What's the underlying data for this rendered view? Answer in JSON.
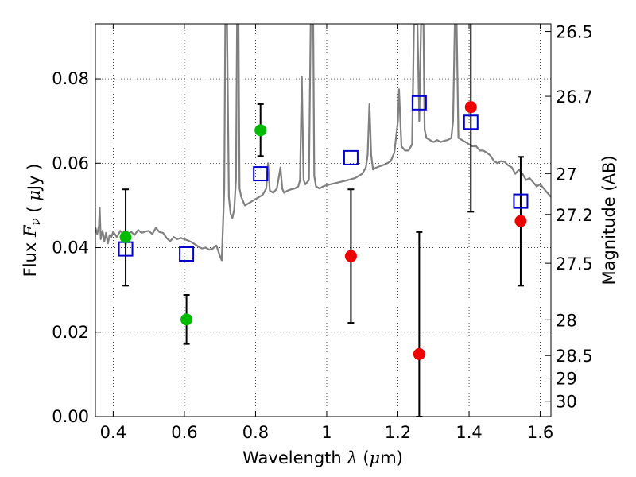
{
  "chart_data": {
    "type": "scatter",
    "title": "",
    "xlabel": "Wavelength  λ (μm)",
    "ylabel_left": "Flux  F_ν  ( μJy )",
    "ylabel_right": "Magnitude (AB)",
    "xlim": [
      0.35,
      1.63
    ],
    "ylim": [
      0.0,
      0.093
    ],
    "grid": true,
    "x_ticks": [
      0.4,
      0.6,
      0.8,
      1.0,
      1.2,
      1.4,
      1.6
    ],
    "x_tick_labels": [
      "0.4",
      "0.6",
      "0.8",
      "1",
      "1.2",
      "1.4",
      "1.6"
    ],
    "y_ticks": [
      0.0,
      0.02,
      0.04,
      0.06,
      0.08
    ],
    "y_tick_labels": [
      "0.00",
      "0.02",
      "0.04",
      "0.06",
      "0.08"
    ],
    "right_ticks": [
      {
        "mag": 26.5,
        "label": "26.5"
      },
      {
        "mag": 26.7,
        "label": "26.7"
      },
      {
        "mag": 27.0,
        "label": "27"
      },
      {
        "mag": 27.2,
        "label": "27.2"
      },
      {
        "mag": 27.5,
        "label": "27.5"
      },
      {
        "mag": 28.0,
        "label": "28"
      },
      {
        "mag": 28.5,
        "label": "28.5"
      },
      {
        "mag": 29.0,
        "label": "29"
      },
      {
        "mag": 30.0,
        "label": "30"
      }
    ],
    "series": [
      {
        "marker": "square",
        "color": "#0000cc",
        "points": [
          {
            "x": 0.435,
            "y": 0.0397
          },
          {
            "x": 0.606,
            "y": 0.0385
          },
          {
            "x": 0.814,
            "y": 0.0575
          },
          {
            "x": 1.068,
            "y": 0.0613
          },
          {
            "x": 1.26,
            "y": 0.0743
          },
          {
            "x": 1.405,
            "y": 0.0697
          },
          {
            "x": 1.545,
            "y": 0.051
          }
        ]
      },
      {
        "marker": "circle",
        "color": "#00bb00",
        "points": [
          {
            "x": 0.435,
            "y": 0.0425,
            "yerr_low": 0.031,
            "yerr_high": 0.0538
          },
          {
            "x": 0.606,
            "y": 0.023,
            "yerr_low": 0.0172,
            "yerr_high": 0.0288
          },
          {
            "x": 0.814,
            "y": 0.0678,
            "yerr_low": 0.0617,
            "yerr_high": 0.074
          }
        ]
      },
      {
        "marker": "circle",
        "color": "#ee0000",
        "points": [
          {
            "x": 1.068,
            "y": 0.038,
            "yerr_low": 0.0222,
            "yerr_high": 0.0538
          },
          {
            "x": 1.26,
            "y": 0.0148,
            "yerr_low": 0.0,
            "yerr_high": 0.0437
          },
          {
            "x": 1.405,
            "y": 0.0733,
            "yerr_low": 0.0485,
            "yerr_high": 0.093
          },
          {
            "x": 1.545,
            "y": 0.0463,
            "yerr_low": 0.031,
            "yerr_high": 0.0615
          }
        ]
      }
    ],
    "spectrum": {
      "color": "#808080",
      "points": [
        [
          0.35,
          0.0448
        ],
        [
          0.355,
          0.0432
        ],
        [
          0.36,
          0.0452
        ],
        [
          0.362,
          0.0495
        ],
        [
          0.365,
          0.042
        ],
        [
          0.37,
          0.044
        ],
        [
          0.375,
          0.0415
        ],
        [
          0.38,
          0.0435
        ],
        [
          0.385,
          0.041
        ],
        [
          0.39,
          0.043
        ],
        [
          0.395,
          0.0425
        ],
        [
          0.4,
          0.0438
        ],
        [
          0.41,
          0.0425
        ],
        [
          0.42,
          0.044
        ],
        [
          0.43,
          0.0432
        ],
        [
          0.435,
          0.0405
        ],
        [
          0.44,
          0.0428
        ],
        [
          0.45,
          0.0438
        ],
        [
          0.46,
          0.043
        ],
        [
          0.47,
          0.0442
        ],
        [
          0.48,
          0.0435
        ],
        [
          0.49,
          0.0438
        ],
        [
          0.5,
          0.044
        ],
        [
          0.51,
          0.0432
        ],
        [
          0.52,
          0.0447
        ],
        [
          0.53,
          0.0437
        ],
        [
          0.54,
          0.0435
        ],
        [
          0.55,
          0.0423
        ],
        [
          0.56,
          0.0415
        ],
        [
          0.57,
          0.0425
        ],
        [
          0.58,
          0.042
        ],
        [
          0.59,
          0.0423
        ],
        [
          0.6,
          0.042
        ],
        [
          0.61,
          0.0417
        ],
        [
          0.62,
          0.0413
        ],
        [
          0.63,
          0.0408
        ],
        [
          0.64,
          0.0402
        ],
        [
          0.65,
          0.0398
        ],
        [
          0.66,
          0.04
        ],
        [
          0.67,
          0.0395
        ],
        [
          0.68,
          0.0398
        ],
        [
          0.69,
          0.0405
        ],
        [
          0.7,
          0.038
        ],
        [
          0.705,
          0.037
        ],
        [
          0.71,
          0.049
        ],
        [
          0.712,
          0.054
        ],
        [
          0.715,
          0.093
        ],
        [
          0.72,
          0.093
        ],
        [
          0.725,
          0.052
        ],
        [
          0.73,
          0.048
        ],
        [
          0.735,
          0.047
        ],
        [
          0.74,
          0.049
        ],
        [
          0.745,
          0.056
        ],
        [
          0.748,
          0.093
        ],
        [
          0.752,
          0.093
        ],
        [
          0.755,
          0.054
        ],
        [
          0.76,
          0.052
        ],
        [
          0.77,
          0.05
        ],
        [
          0.78,
          0.0505
        ],
        [
          0.79,
          0.051
        ],
        [
          0.8,
          0.0515
        ],
        [
          0.81,
          0.052
        ],
        [
          0.82,
          0.0525
        ],
        [
          0.83,
          0.054
        ],
        [
          0.835,
          0.06
        ],
        [
          0.84,
          0.0535
        ],
        [
          0.85,
          0.053
        ],
        [
          0.86,
          0.054
        ],
        [
          0.87,
          0.059
        ],
        [
          0.875,
          0.054
        ],
        [
          0.88,
          0.053
        ],
        [
          0.89,
          0.0535
        ],
        [
          0.9,
          0.0538
        ],
        [
          0.91,
          0.054
        ],
        [
          0.92,
          0.0545
        ],
        [
          0.925,
          0.056
        ],
        [
          0.93,
          0.0805
        ],
        [
          0.935,
          0.056
        ],
        [
          0.94,
          0.055
        ],
        [
          0.945,
          0.0555
        ],
        [
          0.95,
          0.056
        ],
        [
          0.955,
          0.093
        ],
        [
          0.962,
          0.093
        ],
        [
          0.965,
          0.057
        ],
        [
          0.97,
          0.0545
        ],
        [
          0.98,
          0.054
        ],
        [
          0.99,
          0.0545
        ],
        [
          1.0,
          0.0548
        ],
        [
          1.02,
          0.0552
        ],
        [
          1.04,
          0.0556
        ],
        [
          1.06,
          0.056
        ],
        [
          1.08,
          0.0565
        ],
        [
          1.09,
          0.057
        ],
        [
          1.1,
          0.0575
        ],
        [
          1.11,
          0.059
        ],
        [
          1.115,
          0.062
        ],
        [
          1.12,
          0.074
        ],
        [
          1.125,
          0.062
        ],
        [
          1.13,
          0.0585
        ],
        [
          1.14,
          0.059
        ],
        [
          1.15,
          0.0593
        ],
        [
          1.16,
          0.0596
        ],
        [
          1.17,
          0.06
        ],
        [
          1.18,
          0.0605
        ],
        [
          1.19,
          0.0625
        ],
        [
          1.2,
          0.07
        ],
        [
          1.203,
          0.0775
        ],
        [
          1.207,
          0.07
        ],
        [
          1.21,
          0.064
        ],
        [
          1.22,
          0.063
        ],
        [
          1.23,
          0.063
        ],
        [
          1.24,
          0.0645
        ],
        [
          1.245,
          0.093
        ],
        [
          1.255,
          0.093
        ],
        [
          1.26,
          0.07
        ],
        [
          1.265,
          0.093
        ],
        [
          1.272,
          0.093
        ],
        [
          1.275,
          0.068
        ],
        [
          1.28,
          0.066
        ],
        [
          1.29,
          0.0655
        ],
        [
          1.3,
          0.065
        ],
        [
          1.31,
          0.0655
        ],
        [
          1.32,
          0.065
        ],
        [
          1.33,
          0.0653
        ],
        [
          1.34,
          0.0655
        ],
        [
          1.35,
          0.066
        ],
        [
          1.355,
          0.07
        ],
        [
          1.36,
          0.093
        ],
        [
          1.365,
          0.093
        ],
        [
          1.37,
          0.066
        ],
        [
          1.38,
          0.0655
        ],
        [
          1.39,
          0.065
        ],
        [
          1.4,
          0.0645
        ],
        [
          1.41,
          0.064
        ],
        [
          1.42,
          0.064
        ],
        [
          1.43,
          0.063
        ],
        [
          1.44,
          0.063
        ],
        [
          1.45,
          0.0625
        ],
        [
          1.46,
          0.0618
        ],
        [
          1.47,
          0.0605
        ],
        [
          1.48,
          0.06
        ],
        [
          1.49,
          0.0605
        ],
        [
          1.5,
          0.0603
        ],
        [
          1.51,
          0.0595
        ],
        [
          1.52,
          0.059
        ],
        [
          1.53,
          0.0575
        ],
        [
          1.54,
          0.0585
        ],
        [
          1.55,
          0.0575
        ],
        [
          1.56,
          0.056
        ],
        [
          1.57,
          0.0565
        ],
        [
          1.58,
          0.0555
        ],
        [
          1.59,
          0.0545
        ],
        [
          1.6,
          0.055
        ],
        [
          1.61,
          0.054
        ],
        [
          1.62,
          0.053
        ],
        [
          1.63,
          0.052
        ]
      ]
    }
  }
}
